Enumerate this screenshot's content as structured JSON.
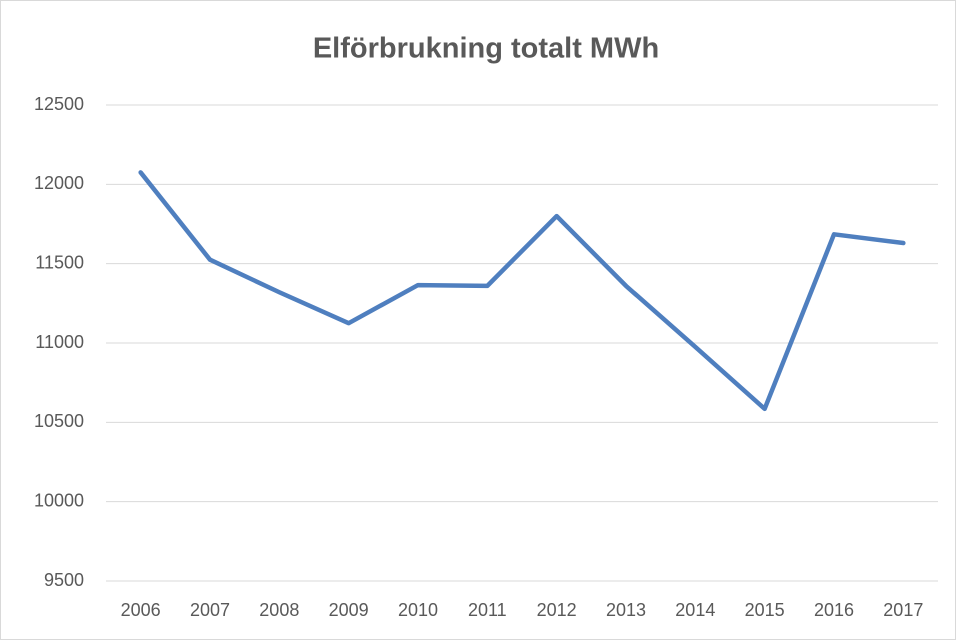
{
  "chart_data": {
    "type": "line",
    "title": "Elförbrukning totalt MWh",
    "categories": [
      "2006",
      "2007",
      "2008",
      "2009",
      "2010",
      "2011",
      "2012",
      "2013",
      "2014",
      "2015",
      "2016",
      "2017"
    ],
    "series": [
      {
        "name": "Elförbrukning totalt MWh",
        "color": "#4f7fbf",
        "values": [
          12075,
          11525,
          11320,
          11125,
          11365,
          11360,
          11800,
          11360,
          10975,
          10585,
          11685,
          11630
        ]
      }
    ],
    "ylim": [
      9500,
      12500
    ],
    "yticks": [
      9500,
      10000,
      10500,
      11000,
      11500,
      12000,
      12500
    ],
    "grid": true,
    "legend": false
  }
}
